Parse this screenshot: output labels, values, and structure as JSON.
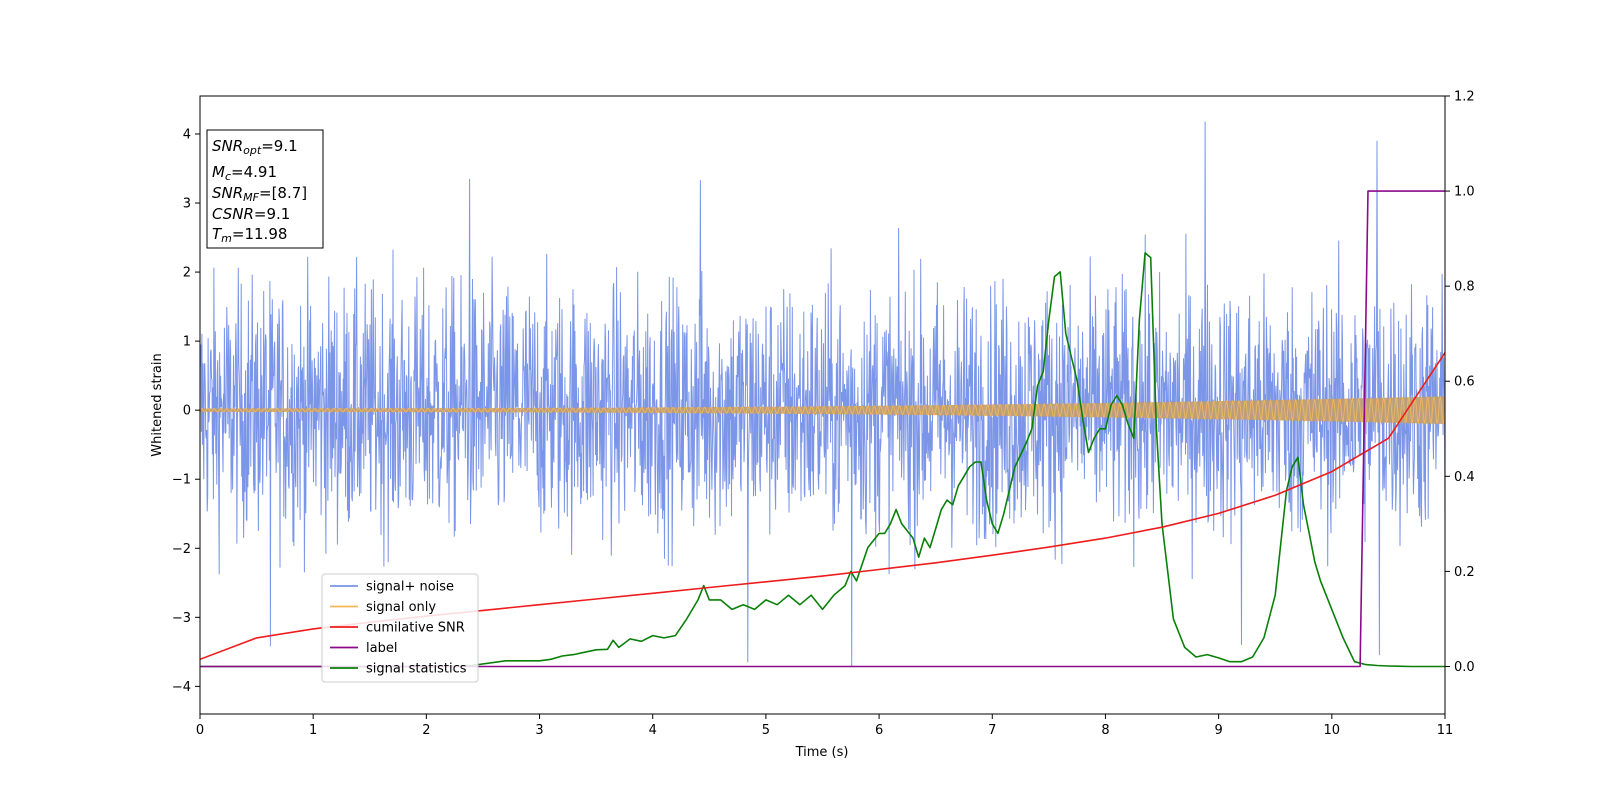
{
  "chart_data": {
    "type": "line",
    "title": "",
    "xlabel": "Time (s)",
    "ylabel": "Whitened strain",
    "y2label": "",
    "xlim": [
      0,
      11
    ],
    "ylim": [
      -4.4,
      4.55
    ],
    "y2lim": [
      -0.1,
      1.2
    ],
    "x_ticks": [
      0,
      1,
      2,
      3,
      4,
      5,
      6,
      7,
      8,
      9,
      10,
      11
    ],
    "x_tick_labels": [
      "0",
      "1",
      "2",
      "3",
      "4",
      "5",
      "6",
      "7",
      "8",
      "9",
      "10",
      "11"
    ],
    "y_ticks": [
      -4,
      -3,
      -2,
      -1,
      0,
      1,
      2,
      3,
      4
    ],
    "y_tick_labels": [
      "−4",
      "−3",
      "−2",
      "−1",
      "0",
      "1",
      "2",
      "3",
      "4"
    ],
    "y2_ticks": [
      0.0,
      0.2,
      0.4,
      0.6,
      0.8,
      1.0,
      1.2
    ],
    "y2_tick_labels": [
      "0.0",
      "0.2",
      "0.4",
      "0.6",
      "0.8",
      "1.0",
      "1.2"
    ],
    "grid": false,
    "legend_position": "lower-left",
    "annotation": {
      "lines": [
        {
          "main": "SNR",
          "sub": "opt",
          "value": "=9.1"
        },
        {
          "main": "M",
          "sub": "c",
          "value": "=4.91"
        },
        {
          "main": "SNR",
          "sub": "MF",
          "value": "=[8.7]"
        },
        {
          "main": "CSNR",
          "sub": "",
          "value": "=9.1"
        },
        {
          "main": "T",
          "sub": "m",
          "value": "=11.98"
        }
      ]
    },
    "series": [
      {
        "name": "signal+ noise",
        "axis": "left",
        "color": "#7893e8",
        "kind": "noise",
        "std": 0.9,
        "peaks": [
          [
            8.88,
            4.18
          ],
          [
            10.4,
            3.9
          ],
          [
            2.38,
            3.35
          ],
          [
            4.42,
            3.33
          ],
          [
            5.76,
            -3.72
          ],
          [
            4.84,
            -3.65
          ],
          [
            0.62,
            -3.42
          ],
          [
            9.2,
            -3.4
          ],
          [
            10.42,
            -3.55
          ]
        ]
      },
      {
        "name": "signal only",
        "axis": "left",
        "color": "#f5b85a",
        "kind": "chirp",
        "amp_start": 0.025,
        "amp_end": 0.2
      },
      {
        "name": "cumilative SNR",
        "axis": "right",
        "color": "#ee1c1c",
        "x": [
          0,
          0.5,
          1,
          1.5,
          2,
          2.5,
          3,
          3.5,
          4,
          4.5,
          5,
          5.5,
          6,
          6.5,
          7,
          7.5,
          8,
          8.5,
          9,
          9.5,
          10,
          10.5,
          11
        ],
        "y": [
          0.015,
          0.06,
          0.079,
          0.093,
          0.106,
          0.118,
          0.13,
          0.142,
          0.154,
          0.166,
          0.178,
          0.19,
          0.204,
          0.218,
          0.234,
          0.251,
          0.27,
          0.293,
          0.322,
          0.36,
          0.41,
          0.48,
          0.66
        ]
      },
      {
        "name": "label",
        "axis": "right",
        "color": "#8b0a8b",
        "x": [
          0,
          10.25,
          10.32,
          11
        ],
        "y": [
          0,
          0,
          1,
          1
        ]
      },
      {
        "name": "signal statistics",
        "axis": "right",
        "color": "#0a800a",
        "x": [
          0,
          1,
          2,
          2.4,
          2.7,
          3,
          3.1,
          3.2,
          3.3,
          3.4,
          3.5,
          3.6,
          3.65,
          3.7,
          3.8,
          3.9,
          4,
          4.1,
          4.2,
          4.3,
          4.4,
          4.45,
          4.5,
          4.6,
          4.7,
          4.8,
          4.9,
          5,
          5.1,
          5.2,
          5.3,
          5.4,
          5.5,
          5.6,
          5.7,
          5.75,
          5.8,
          5.9,
          6,
          6.05,
          6.1,
          6.15,
          6.2,
          6.3,
          6.35,
          6.4,
          6.45,
          6.5,
          6.55,
          6.6,
          6.65,
          6.7,
          6.75,
          6.8,
          6.85,
          6.9,
          6.95,
          7,
          7.05,
          7.1,
          7.15,
          7.2,
          7.3,
          7.35,
          7.4,
          7.45,
          7.5,
          7.55,
          7.6,
          7.65,
          7.7,
          7.75,
          7.8,
          7.85,
          7.9,
          7.95,
          8,
          8.05,
          8.1,
          8.15,
          8.2,
          8.25,
          8.3,
          8.35,
          8.4,
          8.45,
          8.5,
          8.55,
          8.6,
          8.7,
          8.8,
          8.9,
          9,
          9.1,
          9.2,
          9.3,
          9.4,
          9.5,
          9.6,
          9.65,
          9.7,
          9.75,
          9.8,
          9.85,
          9.9,
          10,
          10.1,
          10.2,
          10.3,
          10.4,
          10.5,
          10.7,
          11
        ],
        "y": [
          0,
          0,
          0,
          0.002,
          0.012,
          0.012,
          0.015,
          0.022,
          0.025,
          0.03,
          0.035,
          0.036,
          0.055,
          0.04,
          0.058,
          0.053,
          0.065,
          0.06,
          0.065,
          0.1,
          0.14,
          0.17,
          0.14,
          0.14,
          0.12,
          0.13,
          0.12,
          0.14,
          0.13,
          0.15,
          0.13,
          0.15,
          0.12,
          0.15,
          0.17,
          0.2,
          0.18,
          0.25,
          0.28,
          0.28,
          0.3,
          0.33,
          0.3,
          0.27,
          0.23,
          0.27,
          0.25,
          0.29,
          0.33,
          0.35,
          0.34,
          0.38,
          0.4,
          0.42,
          0.43,
          0.43,
          0.35,
          0.3,
          0.28,
          0.32,
          0.37,
          0.42,
          0.47,
          0.5,
          0.59,
          0.62,
          0.73,
          0.82,
          0.83,
          0.7,
          0.65,
          0.6,
          0.52,
          0.45,
          0.48,
          0.5,
          0.5,
          0.55,
          0.57,
          0.55,
          0.51,
          0.48,
          0.73,
          0.87,
          0.86,
          0.5,
          0.3,
          0.2,
          0.1,
          0.04,
          0.02,
          0.025,
          0.018,
          0.01,
          0.01,
          0.02,
          0.06,
          0.15,
          0.37,
          0.42,
          0.44,
          0.34,
          0.28,
          0.22,
          0.18,
          0.12,
          0.06,
          0.01,
          0.004,
          0.002,
          0.001,
          0,
          0
        ]
      }
    ]
  }
}
